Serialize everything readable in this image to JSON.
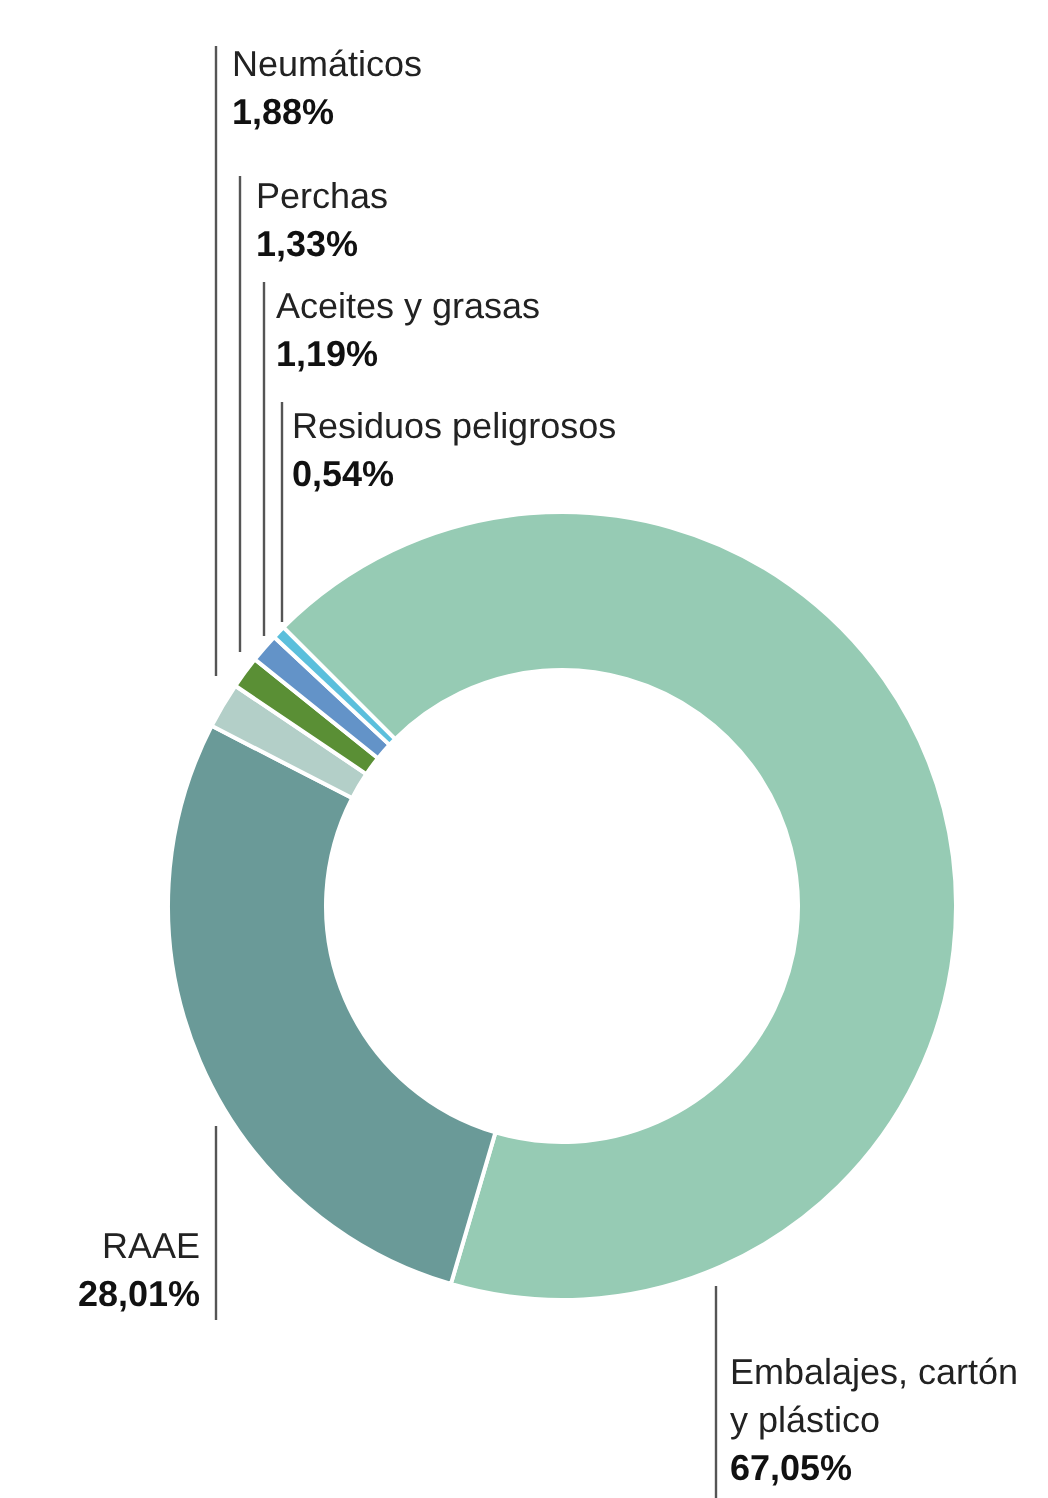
{
  "chart_data": {
    "type": "donut",
    "categories": [
      "Embalajes, cartón\ny plástico",
      "RAAE",
      "Neumáticos",
      "Perchas",
      "Aceites y grasas",
      "Residuos peligrosos"
    ],
    "values": [
      67.05,
      28.01,
      1.88,
      1.33,
      1.19,
      0.54
    ],
    "value_labels": [
      "67,05%",
      "28,01%",
      "1,88%",
      "1,33%",
      "1,19%",
      "0,54%"
    ],
    "colors": [
      "#96cbb4",
      "#6a9a98",
      "#b3cfc8",
      "#5a8f35",
      "#6393c8",
      "#5bbfdc"
    ]
  }
}
